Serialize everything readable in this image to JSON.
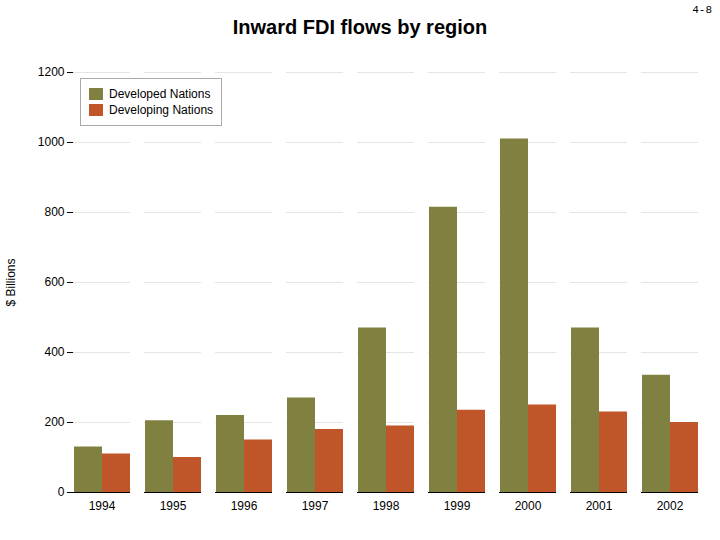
{
  "chart_data": {
    "type": "bar",
    "title": "Inward FDI flows by region",
    "ylabel": "$ Billions",
    "categories": [
      "1994",
      "1995",
      "1996",
      "1997",
      "1998",
      "1999",
      "2000",
      "2001",
      "2002"
    ],
    "series": [
      {
        "name": "Developed Nations",
        "color": "#808040",
        "values": [
          130,
          205,
          220,
          270,
          470,
          815,
          1010,
          470,
          335
        ]
      },
      {
        "name": "Developing Nations",
        "color": "#c0552a",
        "values": [
          110,
          100,
          150,
          180,
          190,
          235,
          250,
          230,
          200
        ]
      }
    ],
    "ylim": [
      0,
      1200
    ],
    "yticks": [
      0,
      200,
      400,
      600,
      800,
      1000,
      1200
    ],
    "grid": true,
    "legend": "upper left",
    "annotations": [
      "4-8"
    ]
  }
}
